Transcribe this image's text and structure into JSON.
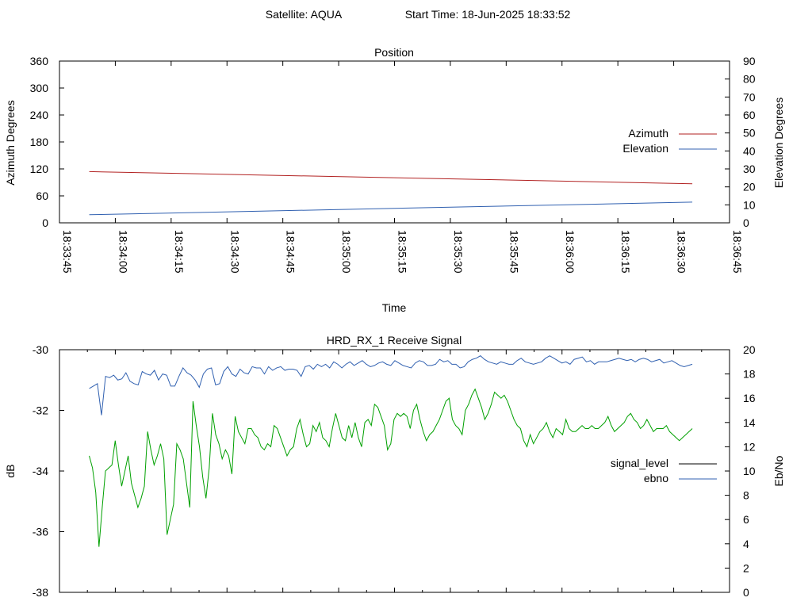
{
  "header": {
    "satellite": "Satellite: AQUA",
    "start_time": "Start Time: 18-Jun-2025 18:33:52"
  },
  "colors": {
    "azimuth": "#b22222",
    "elevation": "#3060b0",
    "signal_level": "#00a000",
    "ebno": "#3060b0",
    "legend_signal": "#000000"
  },
  "chart_data": [
    {
      "type": "line",
      "title": "Position",
      "xlabel": "Time",
      "ylabel": "Azimuth Degrees",
      "y2label": "Elevation Degrees",
      "xlim": [
        "18:33:45",
        "18:36:45"
      ],
      "ylim": [
        0,
        360
      ],
      "y2lim": [
        0,
        90
      ],
      "x_ticks": [
        "18:33:45",
        "18:34:00",
        "18:34:15",
        "18:34:30",
        "18:34:45",
        "18:35:00",
        "18:35:15",
        "18:35:30",
        "18:35:45",
        "18:36:00",
        "18:36:15",
        "18:36:30",
        "18:36:45"
      ],
      "y_ticks": [
        "0",
        "60",
        "120",
        "180",
        "240",
        "300",
        "360"
      ],
      "y2_ticks": [
        "0",
        "10",
        "20",
        "30",
        "40",
        "50",
        "60",
        "70",
        "80",
        "90"
      ],
      "legend_position": "right",
      "series": [
        {
          "name": "Azimuth",
          "axis": "y1",
          "x": [
            "18:33:53",
            "18:36:35"
          ],
          "values": [
            114,
            87
          ]
        },
        {
          "name": "Elevation",
          "axis": "y2",
          "x": [
            "18:33:53",
            "18:36:35"
          ],
          "values": [
            4.5,
            11.5
          ]
        }
      ]
    },
    {
      "type": "line",
      "title": "HRD_RX_1 Receive Signal",
      "ylabel": "dB",
      "y2label": "Eb/No",
      "xlim": [
        "18:33:45",
        "18:36:45"
      ],
      "ylim": [
        -38,
        -30
      ],
      "y2lim": [
        0,
        20
      ],
      "y_ticks": [
        "-30",
        "-32",
        "-34",
        "-36",
        "-38"
      ],
      "y2_ticks": [
        "0",
        "2",
        "4",
        "6",
        "8",
        "10",
        "12",
        "14",
        "16",
        "18",
        "20"
      ],
      "legend_position": "right",
      "series": [
        {
          "name": "signal_level",
          "axis": "y1",
          "x_start": "18:33:53",
          "x_step_seconds": 1.5,
          "values": [
            -33.5,
            -33.9,
            -34.7,
            -36.5,
            -35.2,
            -34.0,
            -33.9,
            -33.8,
            -33.0,
            -33.8,
            -34.5,
            -34.0,
            -33.5,
            -34.4,
            -34.8,
            -35.2,
            -34.9,
            -34.5,
            -32.7,
            -33.3,
            -33.8,
            -33.5,
            -33.1,
            -33.6,
            -36.1,
            -35.6,
            -35.1,
            -33.1,
            -33.3,
            -33.6,
            -34.4,
            -35.2,
            -31.7,
            -32.5,
            -33.2,
            -34.2,
            -34.9,
            -33.9,
            -32.1,
            -32.8,
            -33.1,
            -33.6,
            -33.3,
            -33.5,
            -34.1,
            -32.2,
            -32.7,
            -32.9,
            -33.1,
            -32.6,
            -32.6,
            -32.8,
            -32.9,
            -33.2,
            -33.3,
            -33.1,
            -33.2,
            -32.5,
            -32.6,
            -32.9,
            -33.2,
            -33.5,
            -33.3,
            -33.2,
            -32.6,
            -32.3,
            -32.8,
            -33.2,
            -33.1,
            -32.5,
            -32.7,
            -32.4,
            -32.9,
            -33.0,
            -33.2,
            -32.6,
            -32.1,
            -32.5,
            -32.9,
            -33.0,
            -32.5,
            -32.9,
            -32.4,
            -32.9,
            -33.2,
            -32.4,
            -32.3,
            -32.5,
            -31.8,
            -31.9,
            -32.2,
            -32.5,
            -33.3,
            -33.1,
            -32.3,
            -32.1,
            -32.2,
            -32.1,
            -32.2,
            -32.6,
            -32.0,
            -31.8,
            -32.3,
            -32.7,
            -33.0,
            -32.8,
            -32.7,
            -32.5,
            -32.3,
            -32.0,
            -31.7,
            -31.6,
            -32.3,
            -32.5,
            -32.6,
            -32.8,
            -32.0,
            -31.8,
            -31.5,
            -31.3,
            -31.6,
            -31.9,
            -32.3,
            -32.1,
            -31.8,
            -31.4,
            -31.5,
            -31.6,
            -31.5,
            -31.7,
            -32.0,
            -32.3,
            -32.5,
            -32.6,
            -33.0,
            -33.2,
            -32.8,
            -33.1,
            -32.9,
            -32.7,
            -32.6,
            -32.4,
            -32.7,
            -32.9,
            -32.6,
            -32.7,
            -32.8,
            -32.3,
            -32.6,
            -32.7,
            -32.7,
            -32.6,
            -32.5,
            -32.6,
            -32.6,
            -32.5,
            -32.6,
            -32.6,
            -32.5,
            -32.4,
            -32.2,
            -32.5,
            -32.7,
            -32.6,
            -32.5,
            -32.4,
            -32.2,
            -32.1,
            -32.3,
            -32.4,
            -32.6,
            -32.5,
            -32.3,
            -32.5,
            -32.7,
            -32.6,
            -32.6,
            -32.6,
            -32.5,
            -32.7,
            -32.8,
            -32.9,
            -33.0,
            -32.9,
            -32.8,
            -32.7,
            -32.6
          ]
        },
        {
          "name": "ebno",
          "axis": "y2",
          "x_start": "18:33:53",
          "x_step_seconds": 1.5,
          "values": [
            16.8,
            17.0,
            17.2,
            14.6,
            17.8,
            17.7,
            17.9,
            17.5,
            17.6,
            18.1,
            17.4,
            17.2,
            17.1,
            18.2,
            18.0,
            17.9,
            18.3,
            17.5,
            18.0,
            17.9,
            17.0,
            17.0,
            17.8,
            18.5,
            18.1,
            17.9,
            17.5,
            16.9,
            18.0,
            18.4,
            18.5,
            17.1,
            17.2,
            18.2,
            18.6,
            18.0,
            17.8,
            18.4,
            18.1,
            18.0,
            18.6,
            18.5,
            18.5,
            18.0,
            18.6,
            18.3,
            18.5,
            18.6,
            18.3,
            18.4,
            18.4,
            18.3,
            17.8,
            18.6,
            18.7,
            18.4,
            18.8,
            18.6,
            18.8,
            18.5,
            19.0,
            18.8,
            18.5,
            18.8,
            19.0,
            18.7,
            18.9,
            19.1,
            18.8,
            18.6,
            18.7,
            18.9,
            19.0,
            18.8,
            18.7,
            19.1,
            18.9,
            18.7,
            18.6,
            18.5,
            18.9,
            19.1,
            19.0,
            18.7,
            18.7,
            18.8,
            19.2,
            19.0,
            19.1,
            18.8,
            18.8,
            18.5,
            18.6,
            19.0,
            19.2,
            19.3,
            19.5,
            19.2,
            19.0,
            18.9,
            18.8,
            19.0,
            18.9,
            18.8,
            18.8,
            19.1,
            19.3,
            19.0,
            18.9,
            18.8,
            18.9,
            19.0,
            19.3,
            19.5,
            19.3,
            19.1,
            18.9,
            19.0,
            18.8,
            19.2,
            19.3,
            19.4,
            19.0,
            19.1,
            18.8,
            19.0,
            19.0,
            19.0,
            19.1,
            19.2,
            19.3,
            19.2,
            19.1,
            19.2,
            19.0,
            19.2,
            19.3,
            19.2,
            19.0,
            19.1,
            19.2,
            18.9,
            19.0,
            19.1,
            18.9,
            18.7,
            18.6,
            18.7,
            18.8
          ]
        }
      ]
    }
  ]
}
